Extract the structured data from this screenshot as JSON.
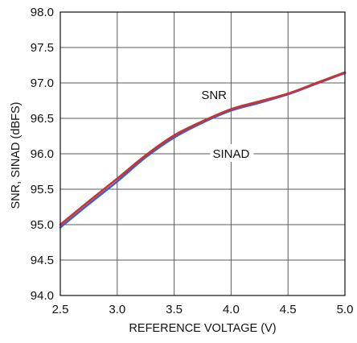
{
  "chart_data": {
    "type": "line",
    "title": "",
    "xlabel": "REFERENCE VOLTAGE (V)",
    "ylabel": "SNR, SINAD (dBFS)",
    "xlim": [
      2.5,
      5.0
    ],
    "ylim": [
      94.0,
      98.0
    ],
    "xticks": [
      2.5,
      3.0,
      3.5,
      4.0,
      4.5,
      5.0
    ],
    "yticks": [
      94.0,
      94.5,
      95.0,
      95.5,
      96.0,
      96.5,
      97.0,
      97.5,
      98.0
    ],
    "xtick_labels": [
      "2.5",
      "3.0",
      "3.5",
      "4.0",
      "4.5",
      "5.0"
    ],
    "ytick_labels": [
      "94.0",
      "94.5",
      "95.0",
      "95.5",
      "96.0",
      "96.5",
      "97.0",
      "97.5",
      "98.0"
    ],
    "grid": true,
    "legend": "none",
    "series": [
      {
        "name": "SNR",
        "color": "#d03030",
        "x": [
          2.5,
          2.75,
          3.0,
          3.25,
          3.5,
          3.75,
          4.0,
          4.25,
          4.5,
          4.75,
          5.0
        ],
        "values": [
          95.0,
          95.33,
          95.65,
          95.98,
          96.26,
          96.46,
          96.63,
          96.74,
          96.85,
          97.0,
          97.15
        ]
      },
      {
        "name": "SINAD",
        "color": "#3a62c8",
        "x": [
          2.5,
          2.75,
          3.0,
          3.25,
          3.5,
          3.75,
          4.0,
          4.25,
          4.5,
          4.75,
          5.0
        ],
        "values": [
          94.96,
          95.29,
          95.61,
          95.95,
          96.23,
          96.44,
          96.61,
          96.72,
          96.84,
          96.99,
          97.14
        ]
      }
    ],
    "annotations": [
      {
        "text": "SNR",
        "series": "SNR",
        "x": 3.85,
        "y": 96.83
      },
      {
        "text": "SINAD",
        "series": "SINAD",
        "x": 4.0,
        "y": 96.0
      }
    ]
  }
}
